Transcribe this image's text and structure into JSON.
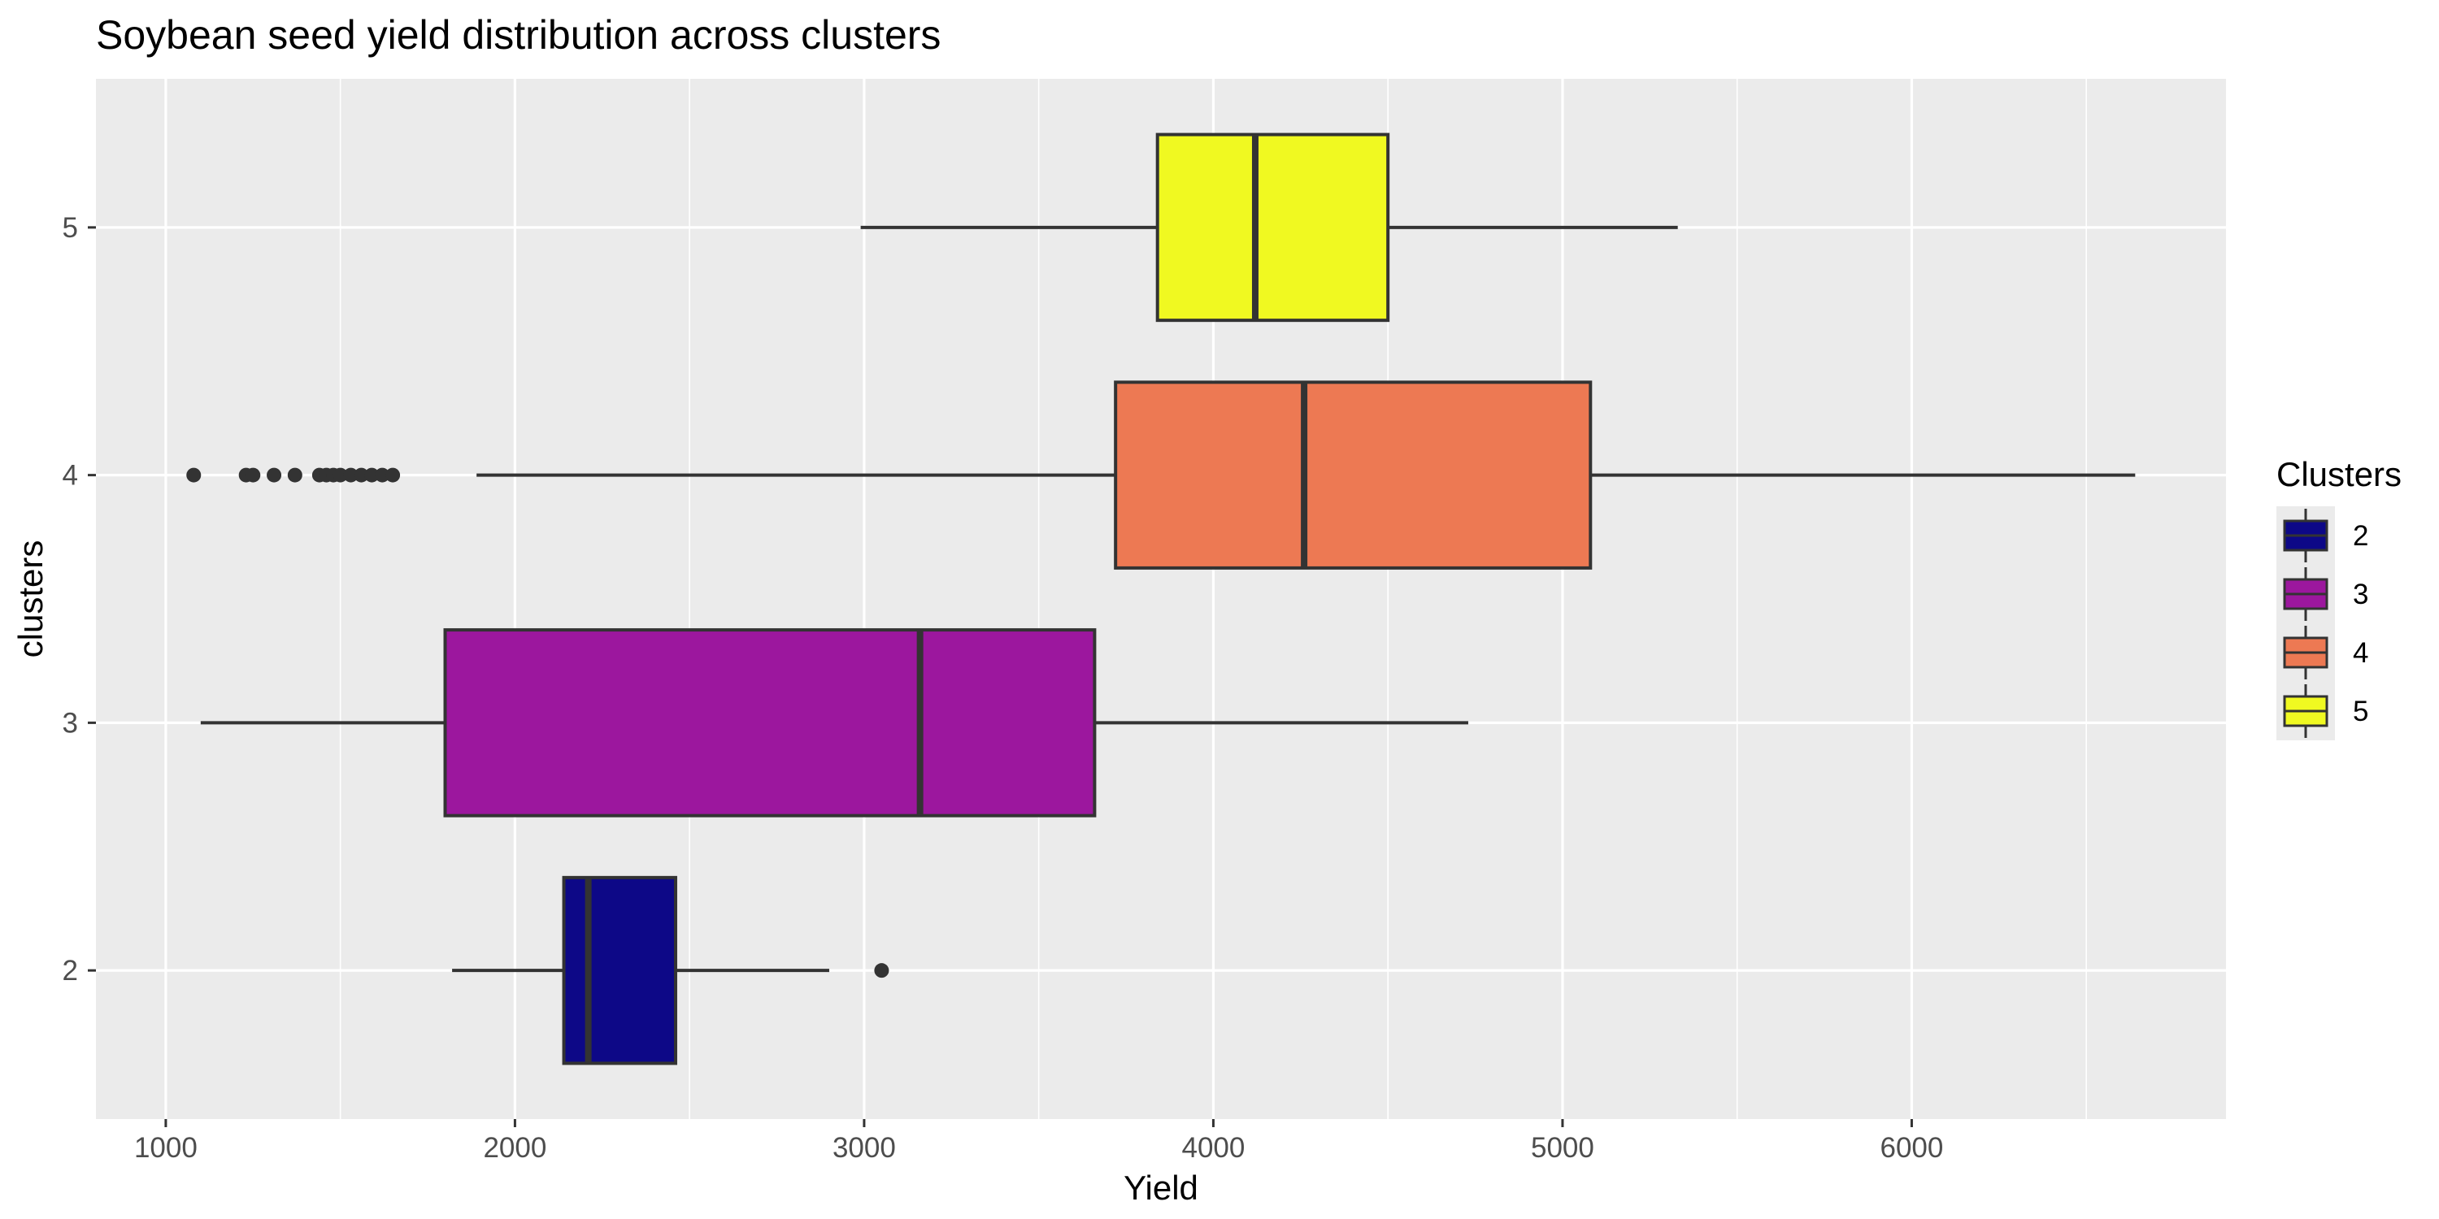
{
  "chart_data": {
    "type": "boxplot",
    "orientation": "horizontal",
    "title": "Soybean seed yield  distribution across clusters",
    "xlabel": "Yield",
    "ylabel": "clusters",
    "xlim": [
      800,
      6900
    ],
    "x_ticks": [
      1000,
      2000,
      3000,
      4000,
      5000,
      6000
    ],
    "x_tick_labels": [
      "1000",
      "2000",
      "3000",
      "4000",
      "5000",
      "6000"
    ],
    "categories": [
      "2",
      "3",
      "4",
      "5"
    ],
    "grid": true,
    "legend": {
      "title": "Clusters",
      "position": "right"
    },
    "series": [
      {
        "name": "2",
        "color": "#0D0887",
        "whisker_low": 1820,
        "q1": 2140,
        "median": 2210,
        "q3": 2460,
        "whisker_high": 2900,
        "outliers": [
          3050
        ]
      },
      {
        "name": "3",
        "color": "#9C179E",
        "whisker_low": 1100,
        "q1": 1800,
        "median": 3160,
        "q3": 3660,
        "whisker_high": 4730,
        "outliers": []
      },
      {
        "name": "4",
        "color": "#ED7953",
        "whisker_low": 1890,
        "q1": 3720,
        "median": 4260,
        "q3": 5080,
        "whisker_high": 6640,
        "outliers": [
          1080,
          1230,
          1250,
          1310,
          1370,
          1440,
          1460,
          1480,
          1500,
          1530,
          1560,
          1590,
          1620,
          1650
        ]
      },
      {
        "name": "5",
        "color": "#F0F921",
        "whisker_low": 2990,
        "q1": 3840,
        "median": 4120,
        "q3": 4500,
        "whisker_high": 5330,
        "outliers": []
      }
    ]
  }
}
